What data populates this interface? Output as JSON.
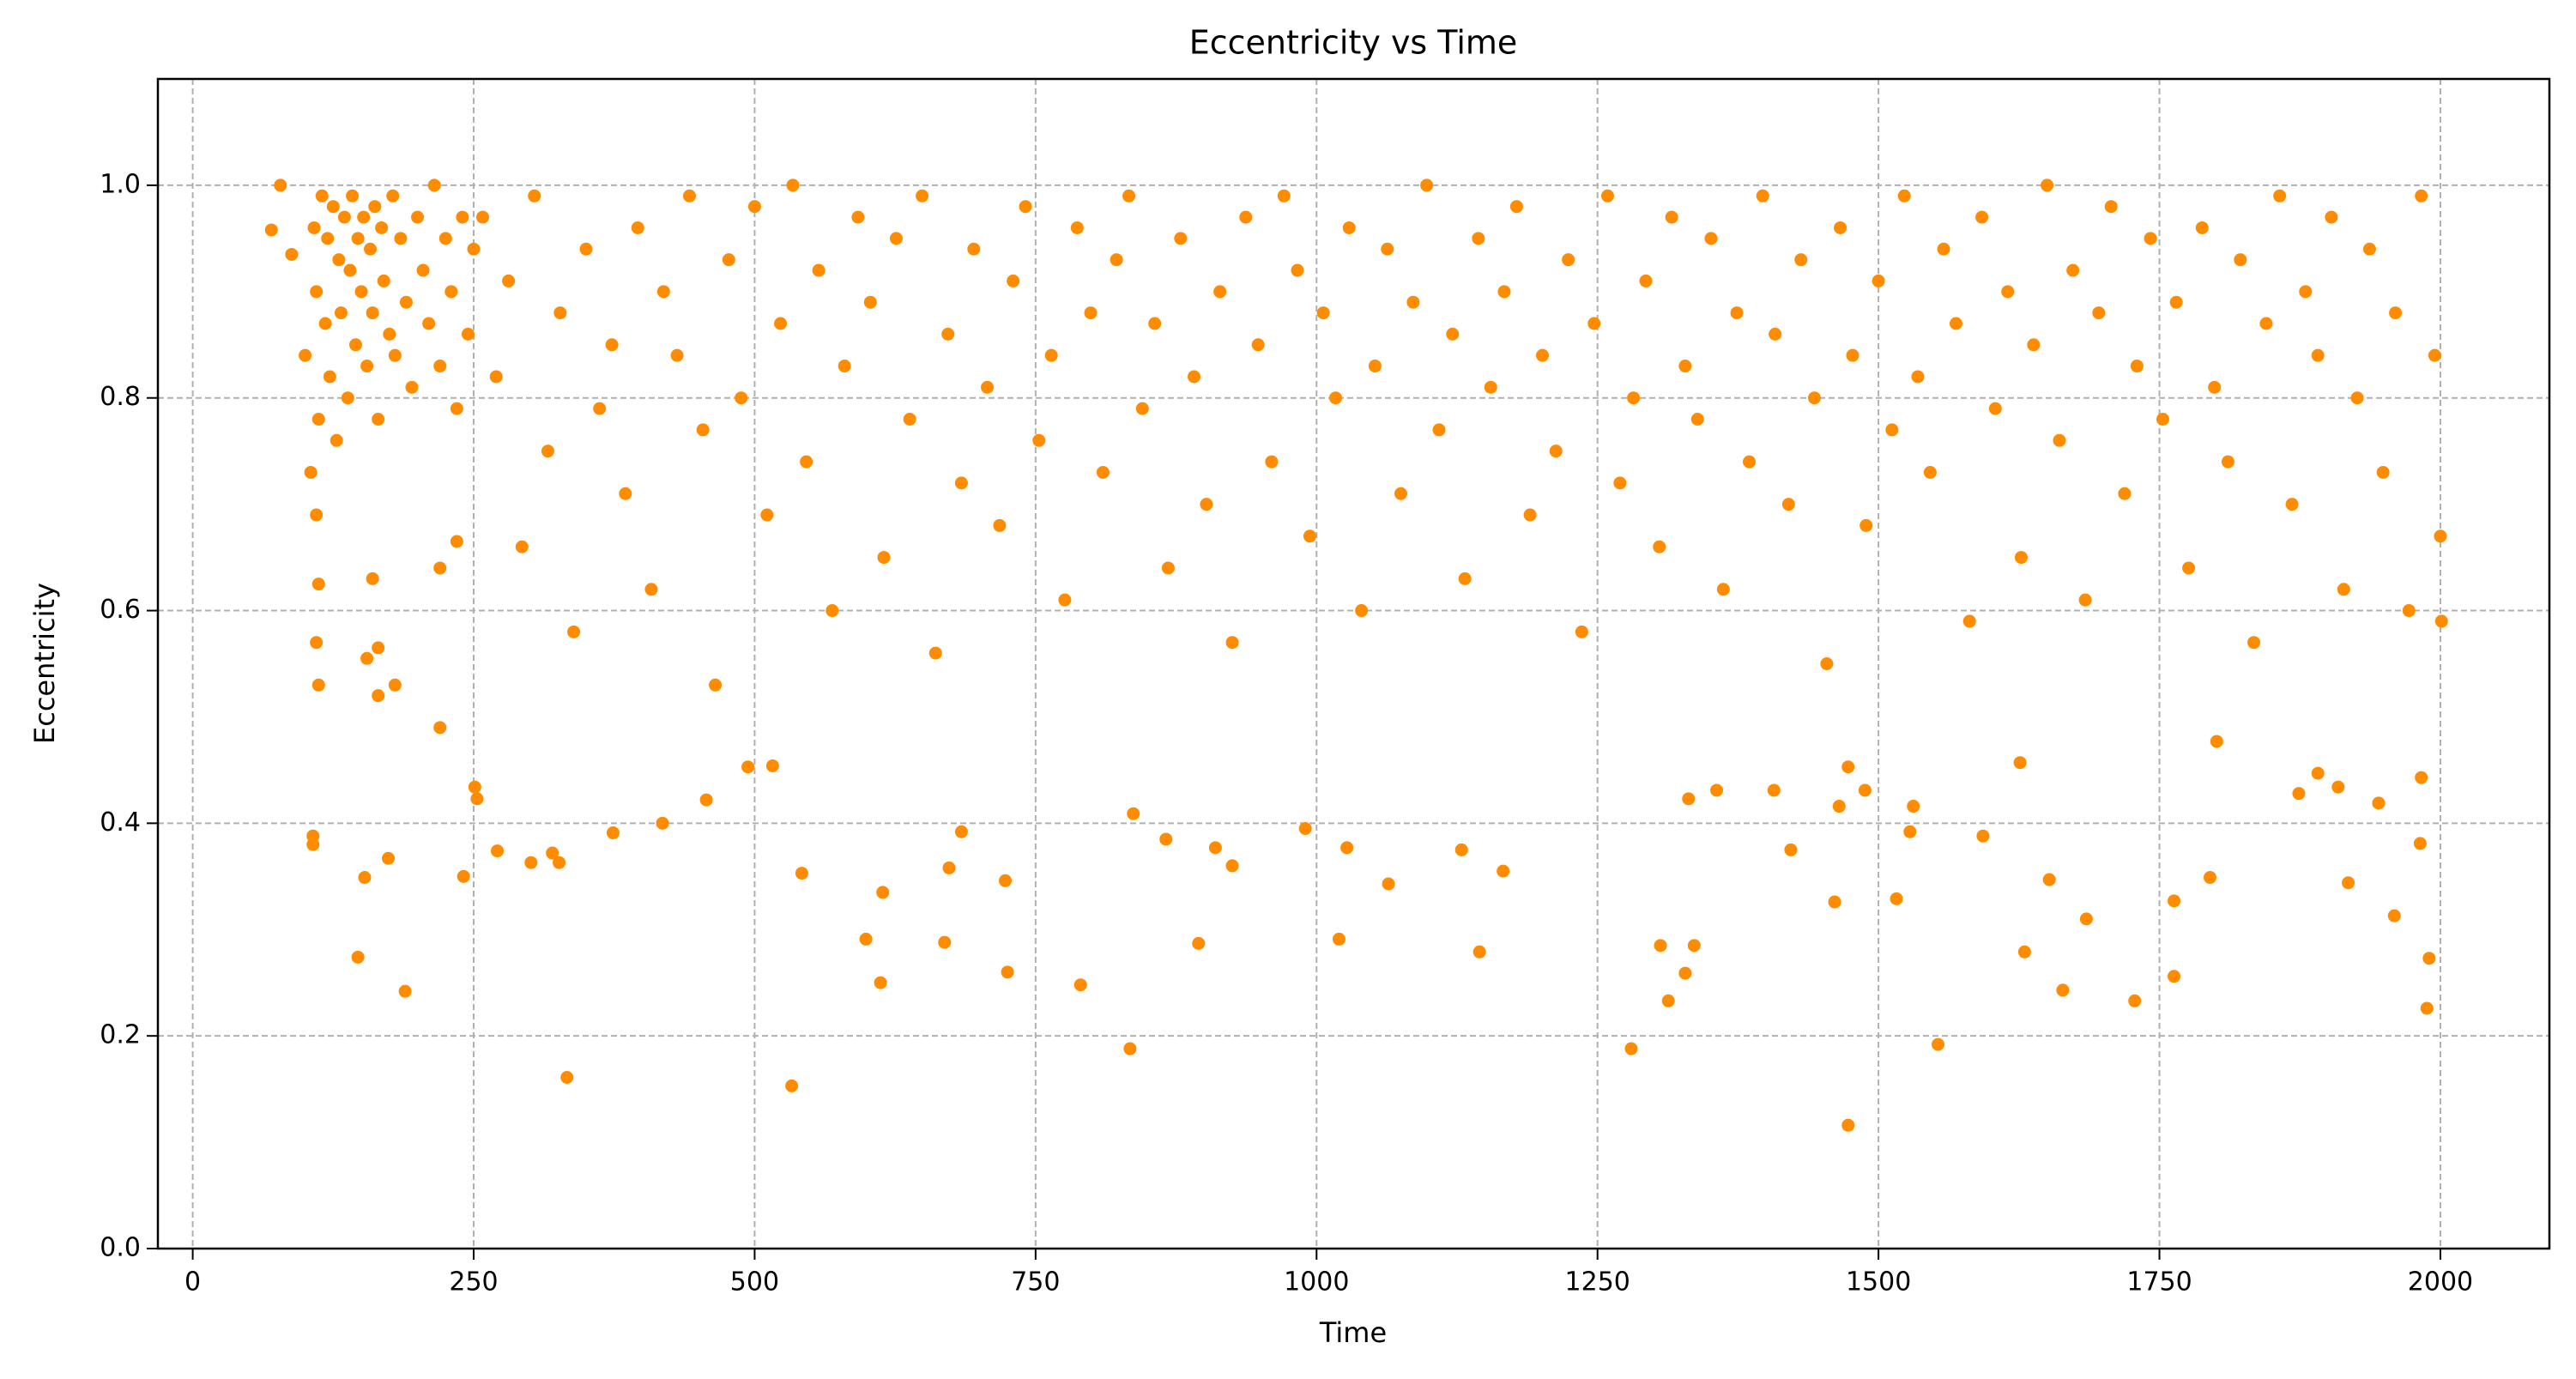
{
  "chart_data": {
    "type": "scatter",
    "title": "Eccentricity vs Time",
    "x_label": "Time",
    "y_label": "Eccentricity",
    "color": "#ff8c00",
    "grid": true,
    "xlim": [
      -31,
      2097
    ],
    "ylim": [
      0,
      1.1
    ],
    "xticks": [
      0,
      250,
      500,
      750,
      1000,
      1250,
      1500,
      1750,
      2000
    ],
    "yticks": [
      {
        "value": 0,
        "label": "0.0"
      },
      0.2,
      0.4,
      0.6,
      0.8,
      {
        "value": 1,
        "label": "1.0"
      }
    ],
    "x": [
      70,
      78,
      88,
      100,
      105,
      108,
      110,
      112,
      115,
      118,
      120,
      122,
      125,
      128,
      130,
      132,
      135,
      138,
      140,
      142,
      145,
      147,
      150,
      152,
      155,
      158,
      160,
      162,
      165,
      168,
      170,
      175,
      178,
      180,
      185,
      190,
      195,
      200,
      205,
      210,
      215,
      220,
      225,
      230,
      235,
      240,
      245,
      250,
      110,
      112,
      110,
      112,
      160,
      165,
      155,
      165,
      180,
      220,
      220,
      235,
      258,
      270,
      281,
      293,
      304,
      316,
      327,
      339,
      350,
      362,
      373,
      385,
      396,
      408,
      419,
      431,
      442,
      454,
      465,
      477,
      488,
      500,
      511,
      523,
      534,
      546,
      557,
      569,
      580,
      592,
      603,
      615,
      626,
      638,
      649,
      661,
      672,
      684,
      695,
      707,
      718,
      730,
      741,
      753,
      764,
      776,
      787,
      799,
      810,
      822,
      833,
      845,
      856,
      868,
      879,
      891,
      902,
      914,
      925,
      937,
      948,
      960,
      971,
      983,
      994,
      1006,
      1017,
      1029,
      1040,
      1052,
      1063,
      1075,
      1086,
      1098,
      1109,
      1121,
      1132,
      1144,
      1155,
      1167,
      1178,
      1190,
      1201,
      1213,
      1224,
      1236,
      1247,
      1259,
      1270,
      1282,
      1293,
      1305,
      1316,
      1328,
      1339,
      1351,
      1362,
      1374,
      1385,
      1397,
      1408,
      1420,
      1431,
      1443,
      1454,
      1466,
      1477,
      1489,
      1500,
      1512,
      1523,
      1535,
      1546,
      1558,
      1569,
      1581,
      1592,
      1604,
      1615,
      1627,
      1638,
      1650,
      1661,
      1673,
      1684,
      1696,
      1707,
      1719,
      1730,
      1742,
      1753,
      1765,
      1776,
      1788,
      1799,
      1811,
      1822,
      1834,
      1845,
      1857,
      1868,
      1880,
      1891,
      1903,
      1914,
      1926,
      1937,
      1949,
      1960,
      1972,
      1983,
      1995,
      2000,
      2001,
      333,
      533,
      834,
      1473,
      1280,
      1553,
      1728,
      1988,
      189,
      147,
      612,
      790,
      725,
      1313,
      1328,
      1336,
      1630,
      1664,
      1145,
      1306,
      1020,
      599,
      895,
      669,
      1990,
      1959,
      1763,
      1763,
      1685,
      1795,
      1516,
      1064,
      1166,
      1918,
      301,
      326,
      153,
      241,
      614,
      723,
      673,
      542,
      1461,
      1652,
      107,
      107,
      374,
      418,
      1982,
      990,
      910,
      925,
      837,
      866,
      1488,
      1473,
      1465,
      1874,
      1891,
      1909,
      1945,
      1801,
      174,
      1983,
      1331,
      1356,
      251,
      457,
      516,
      494,
      253,
      271,
      320,
      1626,
      1531,
      1528,
      1593,
      1407,
      1422,
      1129,
      1027,
      684
    ],
    "y": [
      0.958,
      1.0,
      0.935,
      0.84,
      0.73,
      0.96,
      0.9,
      0.78,
      0.99,
      0.87,
      0.95,
      0.82,
      0.98,
      0.76,
      0.93,
      0.88,
      0.97,
      0.8,
      0.92,
      0.99,
      0.85,
      0.95,
      0.9,
      0.97,
      0.83,
      0.94,
      0.88,
      0.98,
      0.78,
      0.96,
      0.91,
      0.86,
      0.99,
      0.84,
      0.95,
      0.89,
      0.81,
      0.97,
      0.92,
      0.87,
      1.0,
      0.83,
      0.95,
      0.9,
      0.79,
      0.97,
      0.86,
      0.94,
      0.69,
      0.625,
      0.57,
      0.53,
      0.63,
      0.565,
      0.555,
      0.52,
      0.53,
      0.49,
      0.64,
      0.665,
      0.97,
      0.82,
      0.91,
      0.66,
      0.99,
      0.75,
      0.88,
      0.58,
      0.94,
      0.79,
      0.85,
      0.71,
      0.96,
      0.62,
      0.9,
      0.84,
      0.99,
      0.77,
      0.53,
      0.93,
      0.8,
      0.98,
      0.69,
      0.87,
      1.0,
      0.74,
      0.92,
      0.6,
      0.83,
      0.97,
      0.89,
      0.65,
      0.95,
      0.78,
      0.99,
      0.56,
      0.86,
      0.72,
      0.94,
      0.81,
      0.68,
      0.91,
      0.98,
      0.76,
      0.84,
      0.61,
      0.96,
      0.88,
      0.73,
      0.93,
      0.99,
      0.79,
      0.87,
      0.64,
      0.95,
      0.82,
      0.7,
      0.9,
      0.57,
      0.97,
      0.85,
      0.74,
      0.99,
      0.92,
      0.67,
      0.88,
      0.8,
      0.96,
      0.6,
      0.83,
      0.94,
      0.71,
      0.89,
      1.0,
      0.77,
      0.86,
      0.63,
      0.95,
      0.81,
      0.9,
      0.98,
      0.69,
      0.84,
      0.75,
      0.93,
      0.58,
      0.87,
      0.99,
      0.72,
      0.8,
      0.91,
      0.66,
      0.97,
      0.83,
      0.78,
      0.95,
      0.62,
      0.88,
      0.74,
      0.99,
      0.86,
      0.7,
      0.93,
      0.8,
      0.55,
      0.96,
      0.84,
      0.68,
      0.91,
      0.77,
      0.99,
      0.82,
      0.73,
      0.94,
      0.87,
      0.59,
      0.97,
      0.79,
      0.9,
      0.65,
      0.85,
      1.0,
      0.76,
      0.92,
      0.61,
      0.88,
      0.98,
      0.71,
      0.83,
      0.95,
      0.78,
      0.89,
      0.64,
      0.96,
      0.81,
      0.74,
      0.93,
      0.57,
      0.87,
      0.99,
      0.7,
      0.9,
      0.84,
      0.97,
      0.62,
      0.8,
      0.94,
      0.73,
      0.88,
      0.6,
      0.99,
      0.84,
      0.67,
      0.59,
      0.161,
      0.153,
      0.188,
      0.116,
      0.188,
      0.192,
      0.233,
      0.226,
      0.242,
      0.274,
      0.25,
      0.248,
      0.26,
      0.233,
      0.259,
      0.285,
      0.279,
      0.243,
      0.279,
      0.285,
      0.291,
      0.291,
      0.287,
      0.288,
      0.273,
      0.313,
      0.256,
      0.327,
      0.31,
      0.349,
      0.329,
      0.343,
      0.355,
      0.344,
      0.363,
      0.363,
      0.349,
      0.35,
      0.335,
      0.346,
      0.358,
      0.353,
      0.326,
      0.347,
      0.38,
      0.388,
      0.391,
      0.4,
      0.381,
      0.395,
      0.377,
      0.36,
      0.409,
      0.385,
      0.431,
      0.453,
      0.416,
      0.428,
      0.447,
      0.434,
      0.419,
      0.477,
      0.367,
      0.443,
      0.423,
      0.431,
      0.434,
      0.422,
      0.454,
      0.453,
      0.423,
      0.374,
      0.372,
      0.457,
      0.416,
      0.392,
      0.388,
      0.431,
      0.375,
      0.375,
      0.377,
      0.392
    ]
  }
}
